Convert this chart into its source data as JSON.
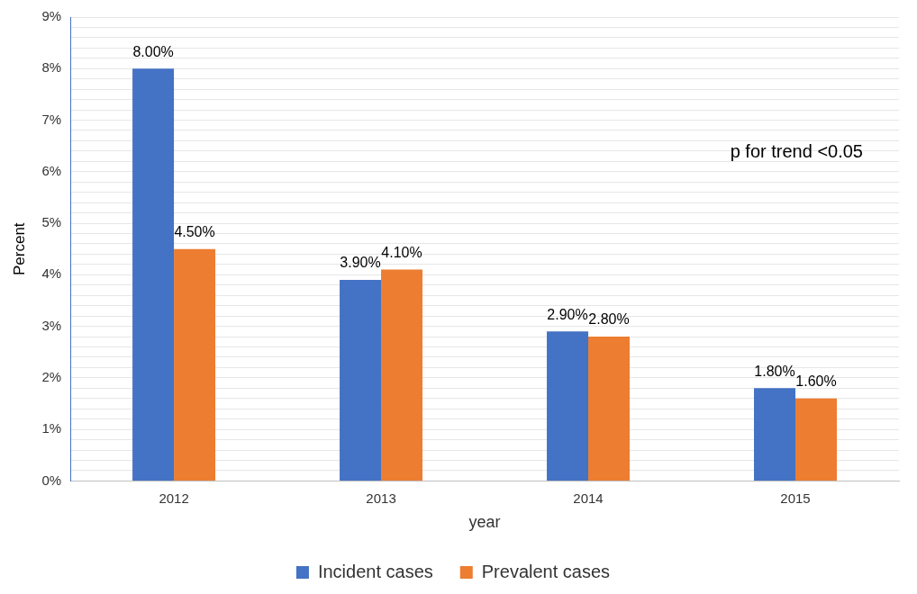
{
  "chart_data": {
    "type": "bar",
    "xlabel": "year",
    "ylabel": "Percent",
    "categories": [
      "2012",
      "2013",
      "2014",
      "2015"
    ],
    "series": [
      {
        "name": "Incident cases",
        "color": "#4472c4",
        "values": [
          8.0,
          3.9,
          2.9,
          1.8
        ],
        "value_labels": [
          "8.00%",
          "3.90%",
          "2.90%",
          "1.80%"
        ]
      },
      {
        "name": "Prevalent cases",
        "color": "#ed7d31",
        "values": [
          4.5,
          4.1,
          2.8,
          1.6
        ],
        "value_labels": [
          "4.50%",
          "4.10%",
          "2.80%",
          "1.60%"
        ]
      }
    ],
    "ylim": [
      0,
      9
    ],
    "yticks": [
      {
        "value": 0,
        "label": "0%"
      },
      {
        "value": 0.2,
        "label": null
      },
      {
        "value": 0.4,
        "label": null
      },
      {
        "value": 0.6,
        "label": null
      },
      {
        "value": 0.8,
        "label": null
      },
      {
        "value": 1,
        "label": "1%"
      },
      {
        "value": 1.2,
        "label": null
      },
      {
        "value": 1.4,
        "label": null
      },
      {
        "value": 1.6,
        "label": null
      },
      {
        "value": 1.8,
        "label": null
      },
      {
        "value": 2,
        "label": "2%"
      },
      {
        "value": 2.2,
        "label": null
      },
      {
        "value": 2.4,
        "label": null
      },
      {
        "value": 2.6,
        "label": null
      },
      {
        "value": 2.8,
        "label": null
      },
      {
        "value": 3,
        "label": "3%"
      },
      {
        "value": 3.2,
        "label": null
      },
      {
        "value": 3.4,
        "label": null
      },
      {
        "value": 3.6,
        "label": null
      },
      {
        "value": 3.8,
        "label": null
      },
      {
        "value": 4,
        "label": "4%"
      },
      {
        "value": 4.2,
        "label": null
      },
      {
        "value": 4.4,
        "label": null
      },
      {
        "value": 4.6,
        "label": null
      },
      {
        "value": 4.8,
        "label": null
      },
      {
        "value": 5,
        "label": "5%"
      },
      {
        "value": 5.2,
        "label": null
      },
      {
        "value": 5.4,
        "label": null
      },
      {
        "value": 5.6,
        "label": null
      },
      {
        "value": 5.8,
        "label": null
      },
      {
        "value": 6,
        "label": "6%"
      },
      {
        "value": 6.2,
        "label": null
      },
      {
        "value": 6.4,
        "label": null
      },
      {
        "value": 6.6,
        "label": null
      },
      {
        "value": 6.8,
        "label": null
      },
      {
        "value": 7,
        "label": "7%"
      },
      {
        "value": 7.2,
        "label": null
      },
      {
        "value": 7.4,
        "label": null
      },
      {
        "value": 7.6,
        "label": null
      },
      {
        "value": 7.8,
        "label": null
      },
      {
        "value": 8,
        "label": "8%"
      },
      {
        "value": 8.2,
        "label": null
      },
      {
        "value": 8.4,
        "label": null
      },
      {
        "value": 8.6,
        "label": null
      },
      {
        "value": 8.8,
        "label": null
      },
      {
        "value": 9,
        "label": "9%"
      }
    ],
    "grid": "y",
    "legend": "bottom",
    "annotations": [
      "p for trend <0.05"
    ]
  }
}
